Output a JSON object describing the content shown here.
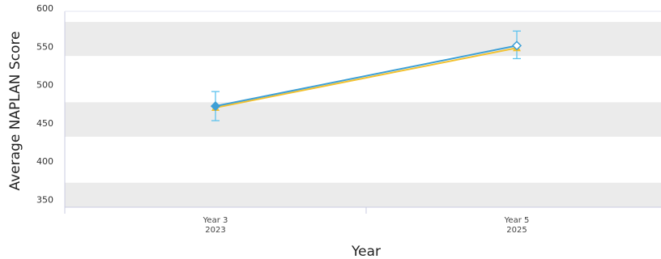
{
  "chart_data": {
    "type": "line",
    "title": "",
    "xlabel": "Year",
    "ylabel": "Average NAPLAN Score",
    "categories": [
      {
        "line1": "Year 3",
        "line2": "2023"
      },
      {
        "line1": "Year 5",
        "line2": "2025"
      }
    ],
    "ylim": [
      340,
      600
    ],
    "yticks": [
      350,
      400,
      450,
      500,
      550,
      600
    ],
    "grid": "alternating horizontal bands",
    "series": [
      {
        "values": [
          470,
          548
        ],
        "color": "#f2c12e",
        "marker": "triangle"
      },
      {
        "values": [
          472,
          551
        ],
        "color": "#3d9fd6",
        "marker": "diamond",
        "error_bars": [
          {
            "low": 453,
            "high": 491
          },
          {
            "low": 534,
            "high": 570
          }
        ]
      }
    ],
    "colors": {
      "band": "#ebebeb",
      "axis": "#c8cbe0",
      "error_bar": "#5ec3ee"
    }
  }
}
